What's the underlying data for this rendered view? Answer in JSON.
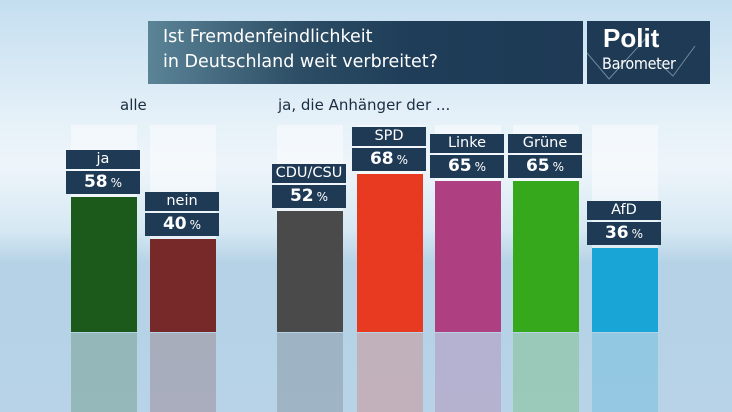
{
  "header": {
    "title_line1": "Ist Fremdenfeindlichkeit",
    "title_line2": "in Deutschland weit verbreitet?",
    "logo_top": "Polit",
    "logo_bottom": "Barometer"
  },
  "chart_data": {
    "type": "bar",
    "title": "Ist Fremdenfeindlichkeit in Deutschland weit verbreitet?",
    "unit": "%",
    "ylim": [
      0,
      100
    ],
    "groups": [
      {
        "label": "alle",
        "categories": [
          "ja",
          "nein"
        ],
        "values": [
          58,
          40
        ],
        "colors": [
          "#1b5a1b",
          "#772828"
        ]
      },
      {
        "label": "ja, die Anhänger der ...",
        "categories": [
          "CDU/CSU",
          "SPD",
          "Linke",
          "Grüne",
          "AfD"
        ],
        "values": [
          52,
          68,
          65,
          65,
          36
        ],
        "colors": [
          "#4a4a4a",
          "#e83a20",
          "#ae3f80",
          "#36a81c",
          "#19a5d6"
        ]
      }
    ]
  }
}
